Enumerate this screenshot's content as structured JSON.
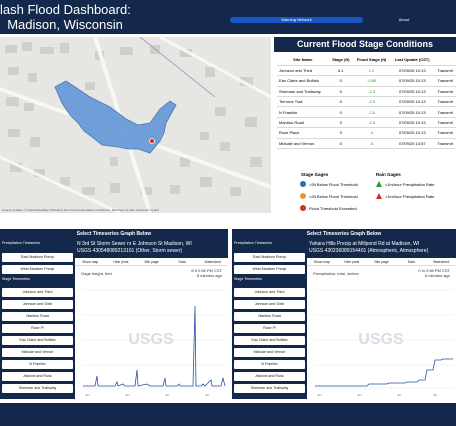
{
  "app": {
    "title": "lash Flood Dashboard:\n  Madison, Wisconsin"
  },
  "nav": {
    "warning_label": "Warning Network",
    "about_label": "About"
  },
  "map": {
    "attribution": "County of Dane, © OpenStreetMap, Microsoft, Esri Community Maps contributors, Map layer by Esri | Powered by Esri"
  },
  "stage": {
    "title": "Current Flood Stage Conditions",
    "columns": [
      "Site Name",
      "Stage (ft)",
      "Flood Stage (ft)",
      "Last Update (CST)",
      ""
    ],
    "rows": [
      [
        "Johnson and Third",
        "5.1",
        "1.2",
        "07/09/25 10:13",
        "Transmit"
      ],
      [
        "Eau Claire and Buffalo",
        "0",
        "-0.85",
        "07/09/25 10:13",
        "Transmit"
      ],
      [
        "Sherman and Trailsway",
        "0",
        "-2.3",
        "07/09/25 10:13",
        "Transmit"
      ],
      [
        "Tierrone Trail",
        "0",
        "-2.5",
        "07/09/25 10:13",
        "Transmit"
      ],
      [
        "N Franklin",
        "0",
        "-2.6",
        "07/09/25 10:13",
        "Transmit"
      ],
      [
        "Manitou Road",
        "0",
        "-2.6",
        "07/09/25 10:13",
        "Transmit"
      ],
      [
        "Rose Place",
        "0",
        "-4",
        "07/09/25 10:13",
        "Transmit"
      ],
      [
        "Midvale and Vernon",
        "0",
        "-5",
        "07/09/25 10:57",
        "Transmit"
      ]
    ]
  },
  "legend": {
    "stage_heading": "Stage Gages",
    "rain_heading": "Rain Gages",
    "stage_items": [
      ">2ft Below Flood Threshold",
      "<2ft Below Flood Threshold",
      "Flood Threshold Exceeded"
    ],
    "rain_items": [
      "<1in/hour Precipitation Rate",
      ">1in/hour Precipitation Rate"
    ]
  },
  "left_panel": {
    "title": "Select Timeseries Graph Below",
    "precip_heading": "Precipitation Timeseries",
    "precip_items": [
      "East Madison Precip",
      "West Madison Precip"
    ],
    "stage_heading": "Stage Timeseries",
    "stage_items": [
      "Johnson and Third",
      "Johnson and Sixth",
      "Manitou Road",
      "Rose Pl",
      "Eau Claire and Buffalo",
      "Midvale and Vernon",
      "N Franklin",
      "Atwood and Rusk",
      "Sherman and Trailsway"
    ],
    "graph": {
      "name": "N 3rd St Storm Sewer nr E Johnson St Madison, WI",
      "site": "USGS 430548089213101 (Other, Storm sewer)",
      "tools": [
        "Show map",
        "Hide plots",
        "Site page",
        "Data",
        "Watershed"
      ],
      "param": "Gage height, feet",
      "value": "6 ft 2:56 PM CST",
      "ago": "8 minutes ago",
      "logo": "USGS"
    }
  },
  "right_panel": {
    "title": "Select Timeseries Graph Below",
    "precip_heading": "Precipitation Timeseries",
    "precip_items": [
      "East Madison Precip",
      "West Madison Precip"
    ],
    "stage_heading": "Stage Timeseries",
    "stage_items": [
      "Johnson and Third",
      "Johnson and Sixth",
      "Manitou Road",
      "Rose Pl",
      "Eau Claire and Buffalo",
      "Midvale and Vernon",
      "N Franklin",
      "Atwood and Rusk",
      "Sherman and Trailsway"
    ],
    "graph": {
      "name": "Yahara Hills Precip at Millpond Rd at Madison, WI",
      "site": "USGS 430236089154401 (Atmospheric, Atmosphere)",
      "tools": [
        "Show map",
        "Hide plots",
        "Site page",
        "Data",
        "Watershed"
      ],
      "param": "Precipitation, total, inches",
      "value": "0 in 2:56 PM CST",
      "ago": "8 minutes ago",
      "logo": "USGS"
    }
  },
  "colors": {
    "navy": "#14284b",
    "accent_blue": "#1a57c4",
    "flood_red": "#d03020",
    "flood_poly": "#6a9bd8"
  }
}
